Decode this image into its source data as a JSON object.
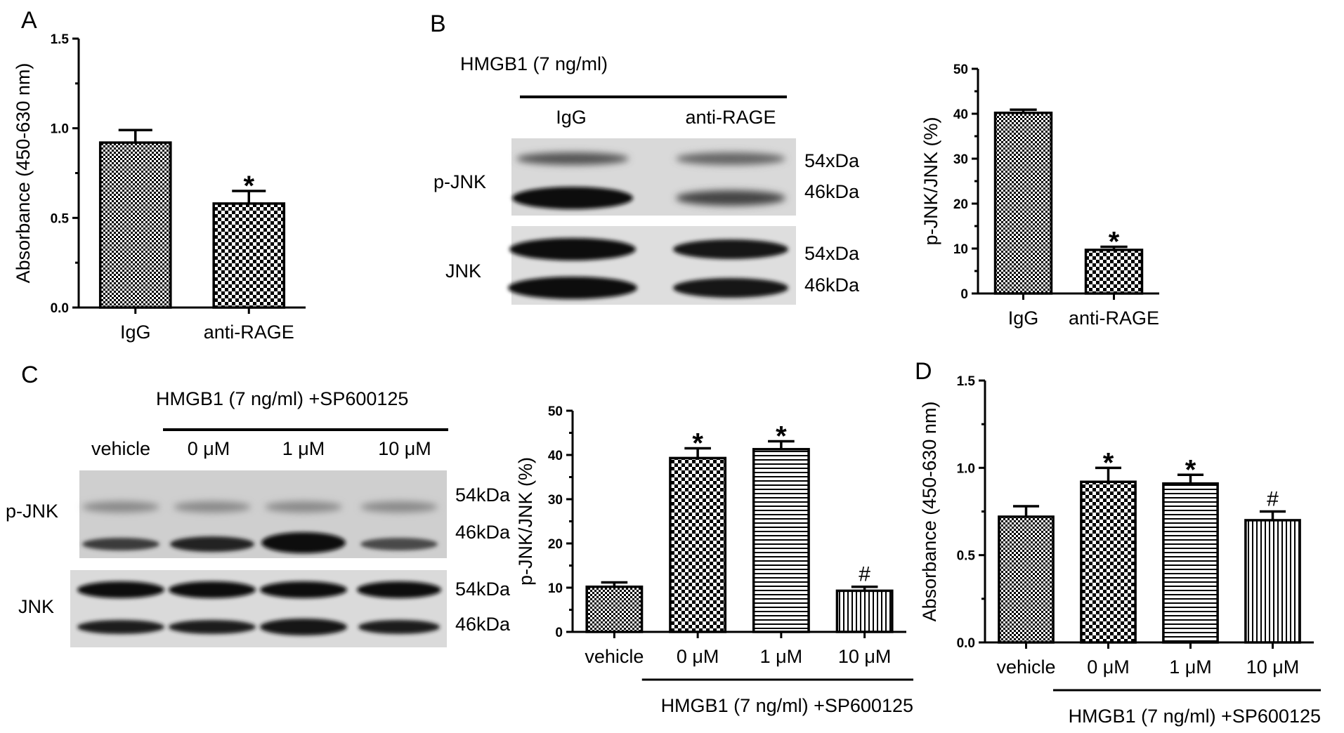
{
  "panels": {
    "A": {
      "letter": "A"
    },
    "B": {
      "letter": "B",
      "blot": {
        "treatment": "HMGB1 (7 ng/ml)",
        "lanes": [
          "IgG",
          "anti-RAGE"
        ],
        "rows": [
          {
            "label": "p-JNK",
            "markers": [
              "54xDa",
              "46kDa"
            ]
          },
          {
            "label": "JNK",
            "markers": [
              "54xDa",
              "46kDa"
            ]
          }
        ]
      }
    },
    "C": {
      "letter": "C",
      "blot": {
        "treatment": "HMGB1 (7 ng/ml) +SP600125",
        "lanes": [
          "vehicle",
          "0 μM",
          "1 μM",
          "10 μM"
        ],
        "rows": [
          {
            "label": "p-JNK",
            "markers": [
              "54kDa",
              "46kDa"
            ]
          },
          {
            "label": "JNK",
            "markers": [
              "54kDa",
              "46kDa"
            ]
          }
        ]
      }
    },
    "D": {
      "letter": "D"
    }
  },
  "colors": {
    "ink": "#000000",
    "pattern_fill": "#ffffff",
    "blot_bg": "#d4d4d4",
    "band": "#1a1a1a"
  },
  "chart_data": [
    {
      "id": "A",
      "type": "bar",
      "ylabel": "Absorbance (450-630 nm)",
      "ylim": [
        0,
        1.5
      ],
      "yticks": [
        "0.0",
        "0.5",
        "1.0",
        "1.5"
      ],
      "categories": [
        "IgG",
        "anti-RAGE"
      ],
      "values": [
        0.92,
        0.58
      ],
      "errors": [
        0.07,
        0.07
      ],
      "patterns": [
        "check-fine",
        "check-coarse"
      ],
      "annotations": [
        "",
        "*"
      ]
    },
    {
      "id": "B",
      "type": "bar",
      "ylabel": "p-JNK/JNK (%)",
      "ylim": [
        0,
        50
      ],
      "yticks": [
        "0",
        "10",
        "20",
        "30",
        "40",
        "50"
      ],
      "categories": [
        "IgG",
        "anti-RAGE"
      ],
      "values": [
        40.2,
        9.7
      ],
      "errors": [
        0.7,
        0.7
      ],
      "patterns": [
        "check-fine",
        "check-coarse"
      ],
      "annotations": [
        "",
        "*"
      ]
    },
    {
      "id": "C",
      "type": "bar",
      "ylabel": "p-JNK/JNK (%)",
      "ylim": [
        0,
        50
      ],
      "yticks": [
        "0",
        "10",
        "20",
        "30",
        "40",
        "50"
      ],
      "categories": [
        "vehicle",
        "0 μM",
        "1 μM",
        "10 μM"
      ],
      "values": [
        10.2,
        39.3,
        41.3,
        9.3
      ],
      "errors": [
        1.0,
        2.2,
        1.8,
        0.9
      ],
      "patterns": [
        "check-fine",
        "check-coarse",
        "hstripe",
        "vstripe"
      ],
      "annotations": [
        "",
        "*",
        "*",
        "#"
      ],
      "group_label": "HMGB1 (7 ng/ml) +SP600125"
    },
    {
      "id": "D",
      "type": "bar",
      "ylabel": "Absorbance (450-630 nm)",
      "ylim": [
        0,
        1.5
      ],
      "yticks": [
        "0.0",
        "0.5",
        "1.0",
        "1.5"
      ],
      "categories": [
        "vehicle",
        "0 μM",
        "1 μM",
        "10 μM"
      ],
      "values": [
        0.72,
        0.92,
        0.91,
        0.7
      ],
      "errors": [
        0.06,
        0.08,
        0.05,
        0.05
      ],
      "patterns": [
        "check-fine",
        "check-coarse",
        "hstripe",
        "vstripe"
      ],
      "annotations": [
        "",
        "*",
        "*",
        "#"
      ],
      "group_label": "HMGB1 (7 ng/ml) +SP600125"
    }
  ]
}
